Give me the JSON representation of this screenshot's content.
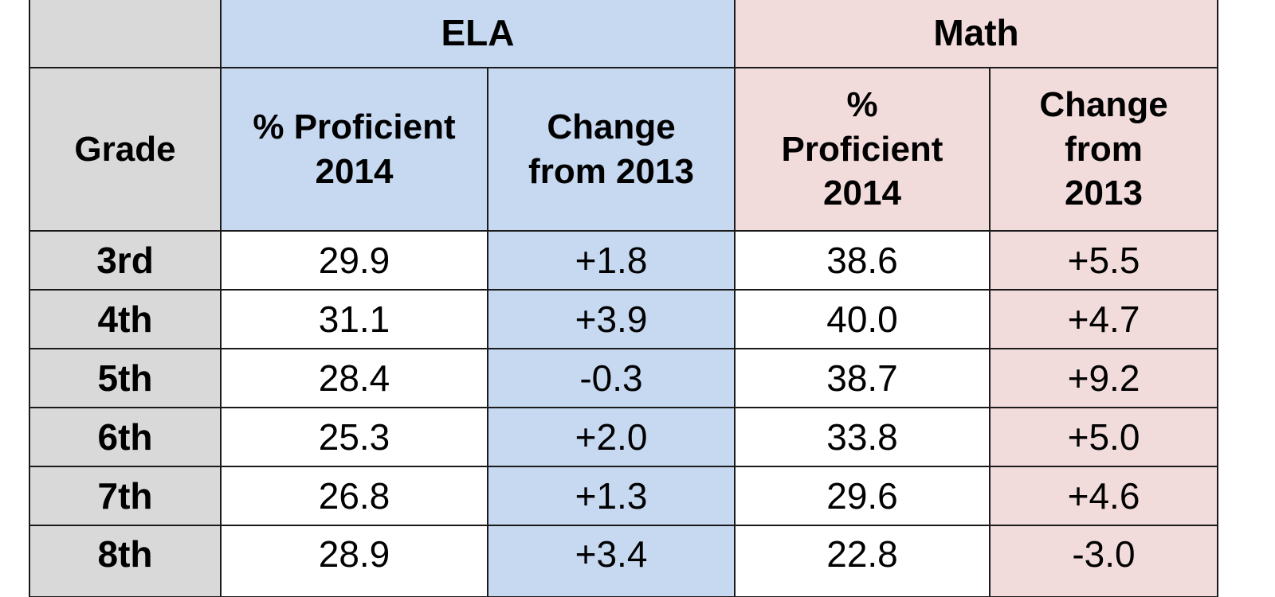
{
  "chart_data": {
    "type": "table",
    "groups": [
      {
        "label": "ELA",
        "color": "#c6d9f1"
      },
      {
        "label": "Math",
        "color": "#f2dcdb"
      }
    ],
    "columns": [
      "Grade",
      "% Proficient 2014",
      "Change from 2013",
      "% Proficient 2014",
      "Change from 2013"
    ],
    "header_lines": {
      "grade": [
        "Grade"
      ],
      "ela_pct": [
        "% Proficient",
        "2014"
      ],
      "ela_change": [
        "Change",
        "from 2013"
      ],
      "math_pct": [
        "%",
        "Proficient",
        "2014"
      ],
      "math_change": [
        "Change",
        "from",
        "2013"
      ]
    },
    "rows": [
      {
        "grade": "3rd",
        "ela_pct": "29.9",
        "ela_change": "+1.8",
        "math_pct": "38.6",
        "math_change": "+5.5"
      },
      {
        "grade": "4th",
        "ela_pct": "31.1",
        "ela_change": "+3.9",
        "math_pct": "40.0",
        "math_change": "+4.7"
      },
      {
        "grade": "5th",
        "ela_pct": "28.4",
        "ela_change": "-0.3",
        "math_pct": "38.7",
        "math_change": "+9.2"
      },
      {
        "grade": "6th",
        "ela_pct": "25.3",
        "ela_change": "+2.0",
        "math_pct": "33.8",
        "math_change": "+5.0"
      },
      {
        "grade": "7th",
        "ela_pct": "26.8",
        "ela_change": "+1.3",
        "math_pct": "29.6",
        "math_change": "+4.6"
      },
      {
        "grade": "8th",
        "ela_pct": "28.9",
        "ela_change": "+3.4",
        "math_pct": "22.8",
        "math_change": "-3.0"
      }
    ]
  },
  "colors": {
    "grade_bg": "#d9d9d9",
    "ela_bg": "#c6d9f1",
    "math_bg": "#f2dcdb",
    "cell_bg": "#ffffff",
    "border": "#1a1a1a"
  }
}
